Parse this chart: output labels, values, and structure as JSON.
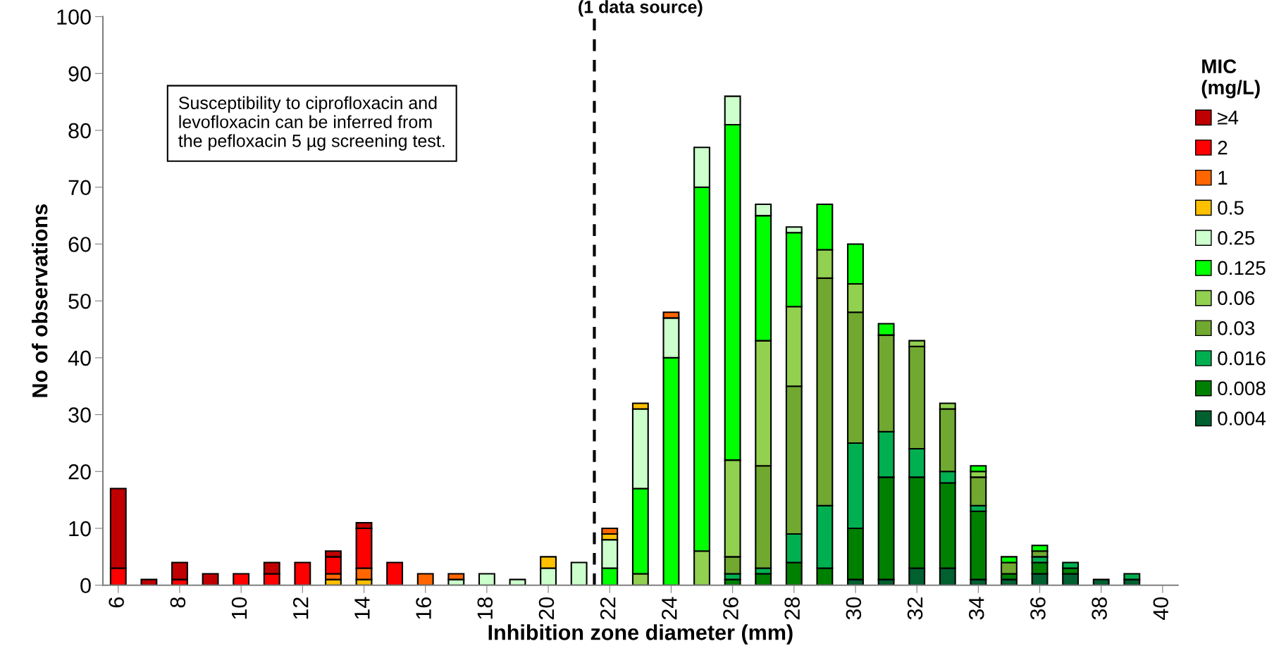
{
  "chart_data": {
    "type": "bar",
    "stacked": true,
    "title": "(1 data source)",
    "xlabel": "Inhibition zone diameter (mm)",
    "ylabel": "No of observations",
    "legend_title": "MIC\n(mg/L)",
    "x": [
      6,
      7,
      8,
      9,
      10,
      11,
      12,
      13,
      14,
      15,
      16,
      17,
      18,
      19,
      20,
      21,
      22,
      23,
      24,
      25,
      26,
      27,
      28,
      29,
      30,
      31,
      32,
      33,
      34,
      35,
      36,
      37,
      38,
      39
    ],
    "xlim": [
      5.5,
      40.5
    ],
    "xticks": [
      6,
      8,
      10,
      12,
      14,
      16,
      18,
      20,
      22,
      24,
      26,
      28,
      30,
      32,
      34,
      36,
      38,
      40
    ],
    "ylim": [
      0,
      100
    ],
    "yticks": [
      0,
      10,
      20,
      30,
      40,
      50,
      60,
      70,
      80,
      90,
      100
    ],
    "grid": false,
    "legend": "right",
    "series": [
      {
        "name": "0.004",
        "color": "#006030",
        "values": [
          0,
          0,
          0,
          0,
          0,
          0,
          0,
          0,
          0,
          0,
          0,
          0,
          0,
          0,
          0,
          0,
          0,
          0,
          0,
          0,
          0,
          0,
          0,
          0,
          1,
          1,
          3,
          3,
          1,
          1,
          2,
          2,
          1,
          1
        ]
      },
      {
        "name": "0.008",
        "color": "#008000",
        "values": [
          0,
          0,
          0,
          0,
          0,
          0,
          0,
          0,
          0,
          0,
          0,
          0,
          0,
          0,
          0,
          0,
          0,
          0,
          0,
          0,
          1,
          2,
          4,
          3,
          9,
          18,
          16,
          15,
          12,
          1,
          2,
          1,
          0,
          0
        ]
      },
      {
        "name": "0.016",
        "color": "#00b050",
        "values": [
          0,
          0,
          0,
          0,
          0,
          0,
          0,
          0,
          0,
          0,
          0,
          0,
          0,
          0,
          0,
          0,
          0,
          0,
          0,
          0,
          1,
          1,
          5,
          11,
          15,
          8,
          5,
          2,
          1,
          0,
          1,
          1,
          0,
          1
        ]
      },
      {
        "name": "0.03",
        "color": "#70a830",
        "values": [
          0,
          0,
          0,
          0,
          0,
          0,
          0,
          0,
          0,
          0,
          0,
          0,
          0,
          0,
          0,
          0,
          0,
          0,
          0,
          0,
          3,
          18,
          26,
          40,
          23,
          17,
          18,
          11,
          5,
          2,
          1,
          0,
          0,
          0
        ]
      },
      {
        "name": "0.06",
        "color": "#92d050",
        "values": [
          0,
          0,
          0,
          0,
          0,
          0,
          0,
          0,
          0,
          0,
          0,
          0,
          0,
          0,
          0,
          0,
          0,
          2,
          0,
          6,
          17,
          22,
          14,
          5,
          5,
          0,
          1,
          1,
          1,
          0,
          0,
          0,
          0,
          0
        ]
      },
      {
        "name": "0.125",
        "color": "#00ff00",
        "values": [
          0,
          0,
          0,
          0,
          0,
          0,
          0,
          0,
          0,
          0,
          0,
          0,
          0,
          0,
          0,
          0,
          3,
          15,
          40,
          64,
          59,
          22,
          13,
          8,
          7,
          2,
          0,
          0,
          1,
          1,
          1,
          0,
          0,
          0
        ]
      },
      {
        "name": "0.25",
        "color": "#ccffcc",
        "values": [
          0,
          0,
          0,
          0,
          0,
          0,
          0,
          0,
          0,
          0,
          0,
          1,
          2,
          1,
          3,
          4,
          5,
          14,
          7,
          7,
          5,
          2,
          1,
          0,
          0,
          0,
          0,
          0,
          0,
          0,
          0,
          0,
          0,
          0
        ]
      },
      {
        "name": "0.5",
        "color": "#ffc000",
        "values": [
          0,
          0,
          0,
          0,
          0,
          0,
          0,
          1,
          1,
          0,
          0,
          0,
          0,
          0,
          2,
          0,
          1,
          1,
          0,
          0,
          0,
          0,
          0,
          0,
          0,
          0,
          0,
          0,
          0,
          0,
          0,
          0,
          0,
          0
        ]
      },
      {
        "name": "1",
        "color": "#ff6600",
        "values": [
          0,
          0,
          0,
          0,
          0,
          0,
          0,
          1,
          2,
          0,
          2,
          1,
          0,
          0,
          0,
          0,
          1,
          0,
          1,
          0,
          0,
          0,
          0,
          0,
          0,
          0,
          0,
          0,
          0,
          0,
          0,
          0,
          0,
          0
        ]
      },
      {
        "name": "2",
        "color": "#ff0000",
        "values": [
          3,
          0,
          1,
          0,
          2,
          2,
          4,
          3,
          7,
          4,
          0,
          0,
          0,
          0,
          0,
          0,
          0,
          0,
          0,
          0,
          0,
          0,
          0,
          0,
          0,
          0,
          0,
          0,
          0,
          0,
          0,
          0,
          0,
          0
        ]
      },
      {
        "name": "≥4",
        "color": "#c00000",
        "values": [
          14,
          1,
          3,
          2,
          0,
          2,
          0,
          1,
          1,
          0,
          0,
          0,
          0,
          0,
          0,
          0,
          0,
          0,
          0,
          0,
          0,
          0,
          0,
          0,
          0,
          0,
          0,
          0,
          0,
          0,
          0,
          0,
          0,
          0
        ]
      }
    ],
    "ref_lines": [
      {
        "axis": "x",
        "value": 21.5,
        "color": "#000000",
        "line_style": "dashed"
      }
    ],
    "annotations": [
      "Susceptibility to ciprofloxacin and\nlevofloxacin can be inferred from\nthe pefloxacin 5 µg screening test."
    ]
  }
}
